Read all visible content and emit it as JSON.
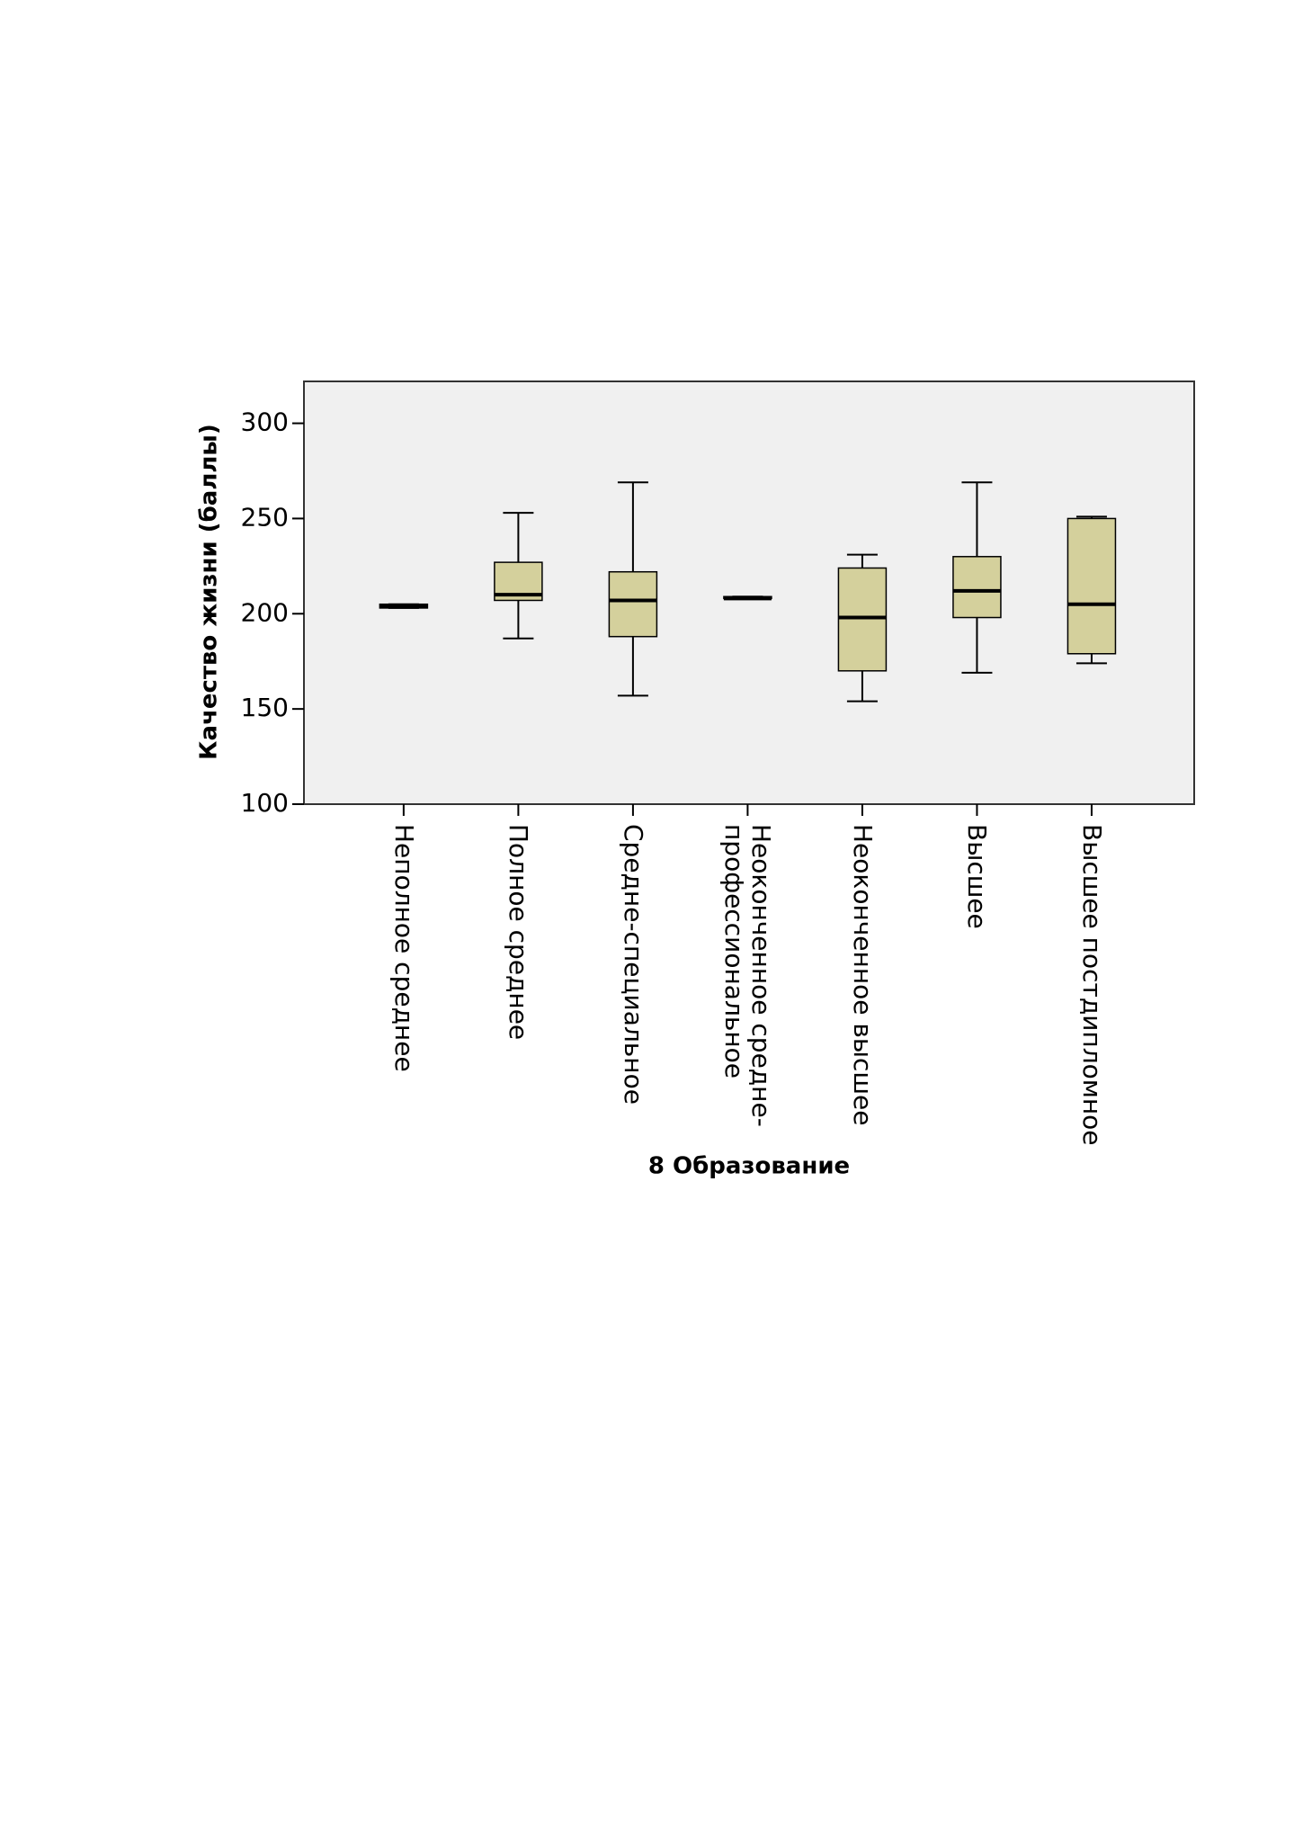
{
  "chart_data": {
    "type": "box",
    "y_label": "Качество жизни (баллы)",
    "x_label": "8 Образование",
    "categories": [
      "Неполное среднее",
      "Полное среднее",
      "Средне-специальное",
      "Неоконченное средне-профессиональное",
      "Неоконченное высшее",
      "Высшее",
      "Высшее постдипломное"
    ],
    "values": [
      {
        "min": 203,
        "q1": 203,
        "median": 204,
        "q3": 205,
        "max": 205
      },
      {
        "min": 187,
        "q1": 207,
        "median": 210,
        "q3": 227,
        "max": 253
      },
      {
        "min": 157,
        "q1": 188,
        "median": 207,
        "q3": 222,
        "max": 269
      },
      {
        "min": 208,
        "q1": 208,
        "median": 208,
        "q3": 209,
        "max": 209
      },
      {
        "min": 154,
        "q1": 170,
        "median": 198,
        "q3": 224,
        "max": 231
      },
      {
        "min": 169,
        "q1": 198,
        "median": 212,
        "q3": 230,
        "max": 269
      },
      {
        "min": 174,
        "q1": 179,
        "median": 205,
        "q3": 250,
        "max": 251
      }
    ],
    "color": "#d4d09c",
    "ylim": [
      100,
      322
    ],
    "yticks": [
      100,
      150,
      200,
      250,
      300
    ]
  }
}
